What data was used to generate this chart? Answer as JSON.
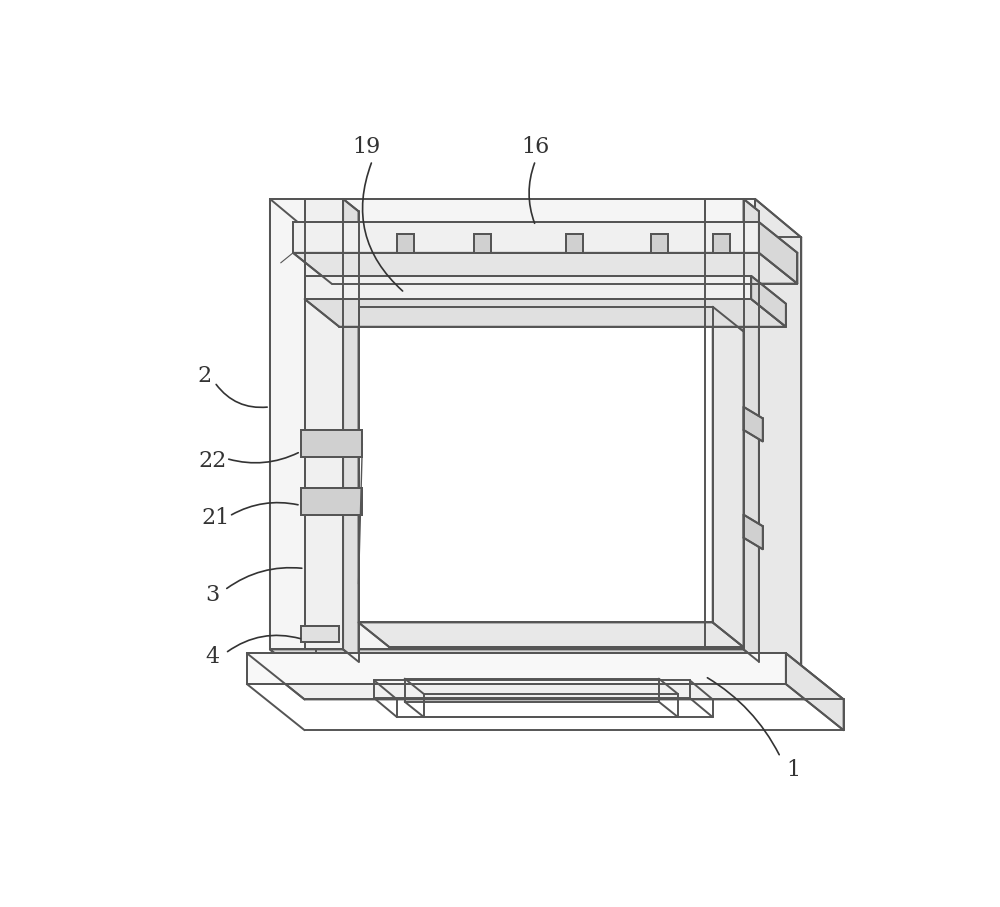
{
  "background_color": "#ffffff",
  "line_color": "#555555",
  "line_width": 1.4,
  "label_fontsize": 16,
  "annotation_color": "#333333",
  "fig_width": 10.0,
  "fig_height": 9.07,
  "dpi": 100
}
